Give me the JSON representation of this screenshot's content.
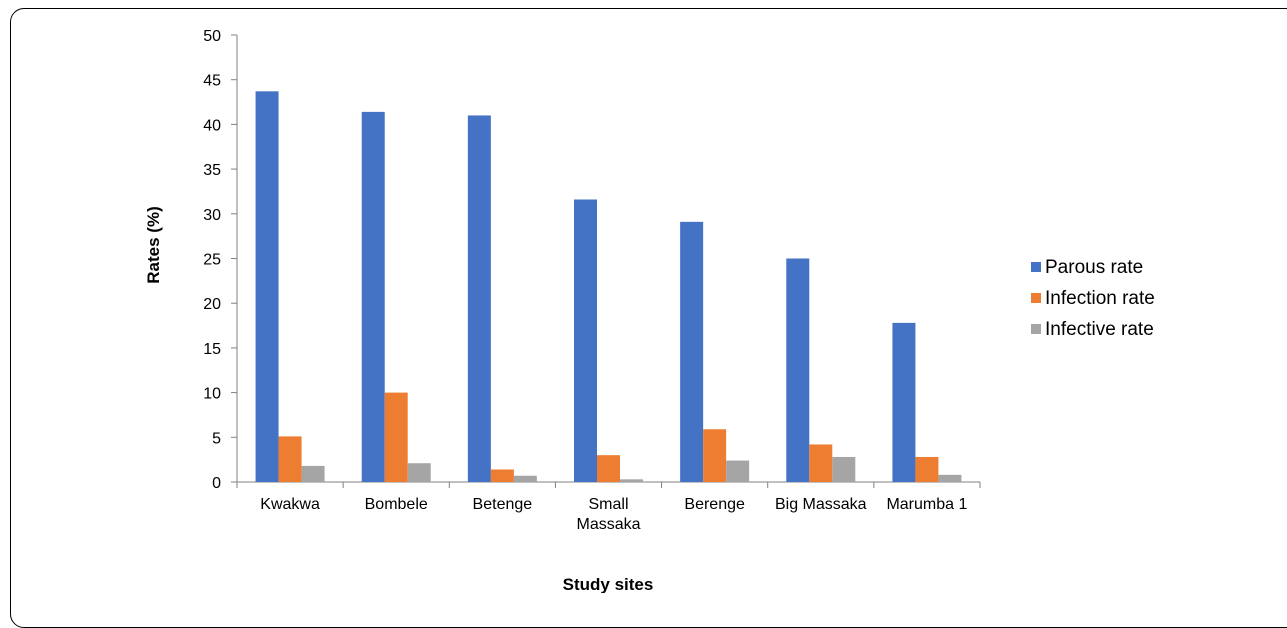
{
  "chart_data": {
    "type": "bar",
    "title": "",
    "xlabel": "Study sites",
    "ylabel": "Rates (%)",
    "ylim": [
      0,
      50
    ],
    "yticks": [
      0,
      5,
      10,
      15,
      20,
      25,
      30,
      35,
      40,
      45,
      50
    ],
    "grid": false,
    "legend_position": "right",
    "categories": [
      [
        "Kwakwa"
      ],
      [
        "Bombele"
      ],
      [
        "Betenge"
      ],
      [
        "Small",
        "Massaka"
      ],
      [
        "Berenge"
      ],
      [
        "Big Massaka"
      ],
      [
        "Marumba 1"
      ]
    ],
    "series": [
      {
        "name": "Parous rate",
        "color": "#4472C4",
        "values": [
          43.7,
          41.4,
          41.0,
          31.6,
          29.1,
          25.0,
          17.8
        ]
      },
      {
        "name": "Infection rate",
        "color": "#ED7D31",
        "values": [
          5.1,
          10.0,
          1.4,
          3.0,
          5.9,
          4.2,
          2.8
        ]
      },
      {
        "name": "Infective rate",
        "color": "#A5A5A5",
        "values": [
          1.8,
          2.1,
          0.7,
          0.3,
          2.4,
          2.8,
          0.8
        ]
      }
    ]
  }
}
